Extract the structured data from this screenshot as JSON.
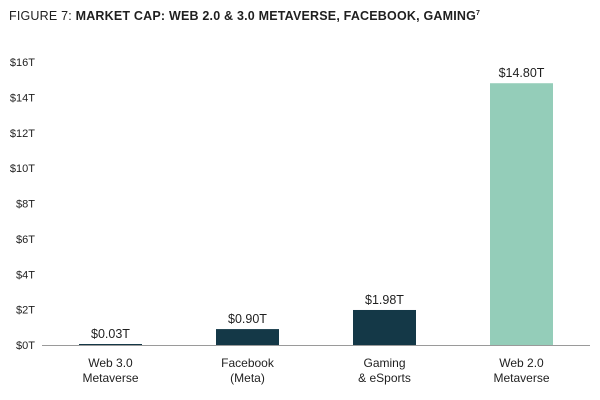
{
  "figure": {
    "prefix": "FIGURE 7: ",
    "title": "MARKET CAP: WEB 2.0 & 3.0 METAVERSE, FACEBOOK, GAMING",
    "superscript": "7"
  },
  "chart_data": {
    "type": "bar",
    "title": "FIGURE 7: MARKET CAP: WEB 2.0 & 3.0 METAVERSE, FACEBOOK, GAMING",
    "categories": [
      [
        "Web 3.0",
        "Metaverse"
      ],
      [
        "Facebook",
        "(Meta)"
      ],
      [
        "Gaming",
        "& eSports"
      ],
      [
        "Web 2.0",
        "Metaverse"
      ]
    ],
    "values": [
      0.03,
      0.9,
      1.98,
      14.8
    ],
    "value_labels": [
      "$0.03T",
      "$0.90T",
      "$1.98T",
      "$14.80T"
    ],
    "colors": [
      "#143847",
      "#143847",
      "#143847",
      "#94cdb9"
    ],
    "ylim": [
      0,
      16
    ],
    "yticks": [
      0,
      2,
      4,
      6,
      8,
      10,
      12,
      14,
      16
    ],
    "ytick_labels": [
      "$0T",
      "$2T",
      "$4T",
      "$6T",
      "$8T",
      "$10T",
      "$12T",
      "$14T",
      "$16T"
    ],
    "xlabel": "",
    "ylabel": "",
    "grid": false,
    "legend": "none"
  }
}
